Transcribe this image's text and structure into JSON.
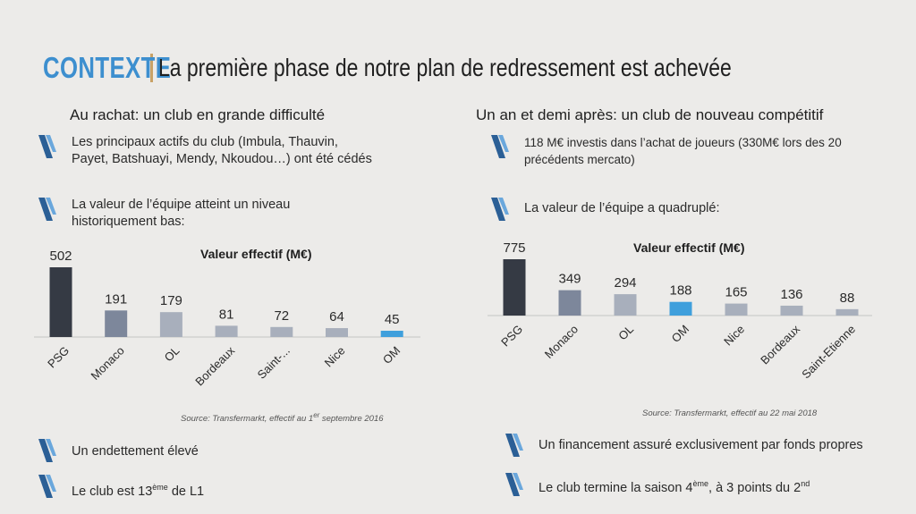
{
  "title": {
    "prefix": "CONTEXTE",
    "main": "La première phase de notre plan de redressement est achevée"
  },
  "left": {
    "heading": "Au rachat: un club en grande difficulté",
    "bullet1": "Les principaux actifs du club (Imbula, Thauvin, Payet, Batshuayi, Mendy, Nkoudou…) ont été cédés",
    "bullet2": "La valeur de l’équipe atteint un niveau historiquement bas:",
    "bullet3": "Un endettement élevé",
    "bullet4_pre": "Le club est 13",
    "bullet4_sup": "ème",
    "bullet4_post": " de L1",
    "source_pre": "Source: Transfermarkt, effectif au 1",
    "source_sup": "er",
    "source_post": " septembre 2016"
  },
  "right": {
    "heading": "Un an et demi après: un club de nouveau compétitif",
    "bullet1": "118 M€ investis dans l’achat de joueurs (330M€ lors des 20 précédents mercato)",
    "bullet2": "La valeur de l’équipe a quadruplé:",
    "bullet3": "Un financement assuré exclusivement par fonds propres",
    "bullet4_pre": "Le club termine la saison 4",
    "bullet4_sup": "ème",
    "bullet4_mid": ", à 3 points du 2",
    "bullet4_sup2": "nd",
    "source": "Source: Transfermarkt, effectif au 22 mai 2018"
  },
  "colors": {
    "accent": "#3d8fcf",
    "dark_bar": "#353a44",
    "mid_bar": "#7d879b",
    "light_bar": "#a8afbc",
    "om_bar": "#3f9fdc",
    "icon": "#4a8cc9"
  },
  "chart_data": [
    {
      "type": "bar",
      "title": "Valeur effectif (M€)",
      "categories": [
        "PSG",
        "Monaco",
        "OL",
        "Bordeaux",
        "Saint-...",
        "Nice",
        "OM"
      ],
      "values": [
        502,
        191,
        179,
        81,
        72,
        64,
        45
      ],
      "bar_colors": [
        "#353a44",
        "#7d879b",
        "#a8afbc",
        "#a8afbc",
        "#a8afbc",
        "#a8afbc",
        "#3f9fdc"
      ]
    },
    {
      "type": "bar",
      "title": "Valeur effectif (M€)",
      "categories": [
        "PSG",
        "Monaco",
        "OL",
        "OM",
        "Nice",
        "Bordeaux",
        "Saint-Etienne"
      ],
      "values": [
        775,
        349,
        294,
        188,
        165,
        136,
        88
      ],
      "bar_colors": [
        "#353a44",
        "#7d879b",
        "#a8afbc",
        "#3f9fdc",
        "#a8afbc",
        "#a8afbc",
        "#a8afbc"
      ]
    }
  ]
}
